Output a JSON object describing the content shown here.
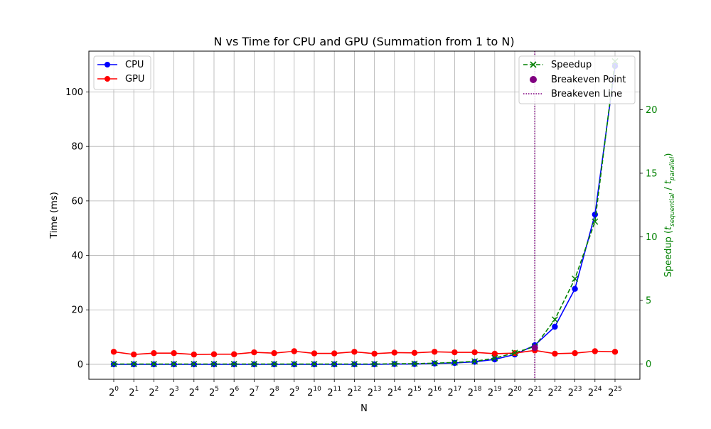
{
  "chart_data": {
    "type": "line",
    "title": "N vs Time for CPU and GPU (Summation from 1 to N)",
    "xlabel": "N",
    "ylabel": "Time (ms)",
    "y2label": "Speedup (t_sequential / t_parallel)",
    "y2label_parts": {
      "prefix": "Speedup (",
      "t1": "t",
      "sub1": "sequential",
      "sep": " / ",
      "t2": "t",
      "sub2": "parallel",
      "suffix": ")"
    },
    "tick_base": "2",
    "exponents": [
      0,
      1,
      2,
      3,
      4,
      5,
      6,
      7,
      8,
      9,
      10,
      11,
      12,
      13,
      14,
      15,
      16,
      17,
      18,
      19,
      20,
      21,
      22,
      23,
      24,
      25
    ],
    "ylim": [
      -5.5,
      115
    ],
    "yticks": [
      0,
      20,
      40,
      60,
      80,
      100
    ],
    "y2lim": [
      -1.2,
      24.6
    ],
    "y2ticks": [
      0,
      5,
      10,
      15,
      20
    ],
    "grid": true,
    "series": [
      {
        "name": "CPU",
        "color": "#0000ff",
        "marker": "circle",
        "line": "solid",
        "values": [
          0,
          0,
          0,
          0,
          0,
          0,
          0,
          0,
          0,
          0,
          0,
          0,
          0,
          0,
          0.1,
          0.1,
          0.3,
          0.5,
          0.9,
          1.8,
          3.6,
          7.0,
          13.8,
          27.7,
          55.0,
          109.5
        ]
      },
      {
        "name": "GPU",
        "color": "#ff0000",
        "marker": "circle",
        "line": "solid",
        "values": [
          4.6,
          3.6,
          4.1,
          4.1,
          3.6,
          3.7,
          3.7,
          4.4,
          4.1,
          4.8,
          4.0,
          4.0,
          4.6,
          3.9,
          4.3,
          4.2,
          4.6,
          4.4,
          4.4,
          3.9,
          4.1,
          5.1,
          3.9,
          4.1,
          4.8,
          4.6
        ]
      },
      {
        "name": "Speedup",
        "color": "#008000",
        "marker": "x",
        "line": "dashed",
        "axis": "right",
        "values": [
          0,
          0,
          0,
          0,
          0,
          0,
          0,
          0,
          0,
          0,
          0,
          0,
          0,
          0,
          0.02,
          0.03,
          0.07,
          0.12,
          0.21,
          0.46,
          0.88,
          1.38,
          3.5,
          6.7,
          11.2,
          23.8
        ]
      }
    ],
    "breakeven": {
      "point_label": "Breakeven Point",
      "line_label": "Breakeven Line",
      "exponent": 21,
      "time": 6.1,
      "color": "#800080"
    },
    "legend_left": {
      "placement": "top-left",
      "entries": [
        "CPU",
        "GPU"
      ]
    },
    "legend_right": {
      "placement": "top-right",
      "entries": [
        "Speedup",
        "Breakeven Point",
        "Breakeven Line"
      ]
    }
  }
}
